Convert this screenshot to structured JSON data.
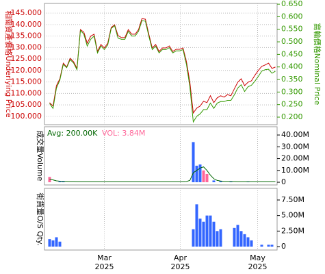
{
  "chart_data": [
    {
      "type": "line",
      "ylabel": "相關資產價格Underlying Price",
      "y2label": "窩輪價格Nominal Price",
      "ytick_side": "left",
      "grid": true,
      "x": [
        0,
        1,
        2,
        3,
        4,
        5,
        6,
        7,
        8,
        9,
        10,
        11,
        12,
        13,
        14,
        15,
        16,
        17,
        18,
        19,
        20,
        21,
        22,
        23,
        24,
        25,
        26,
        27,
        28,
        29,
        30,
        31,
        32,
        33,
        34,
        35,
        36,
        37,
        38,
        39,
        40,
        41,
        42,
        43,
        44,
        45,
        46,
        47,
        48,
        49,
        50,
        51,
        52,
        53,
        54,
        55,
        56,
        57,
        58,
        59,
        60,
        61,
        62,
        63,
        64,
        65,
        66
      ],
      "xlim": [
        -1.5,
        66.5
      ],
      "ylim": [
        96.4,
        149.2
      ],
      "yticks": [
        {
          "value": 100,
          "label": "100.000"
        },
        {
          "value": 105,
          "label": "105.000"
        },
        {
          "value": 110,
          "label": "110.000"
        },
        {
          "value": 115,
          "label": "115.000"
        },
        {
          "value": 120,
          "label": "120.000"
        },
        {
          "value": 125,
          "label": "125.000"
        },
        {
          "value": 130,
          "label": "130.000"
        },
        {
          "value": 135,
          "label": "135.000"
        },
        {
          "value": 140,
          "label": "140.000"
        },
        {
          "value": 145,
          "label": "145.000"
        }
      ],
      "y2lim": [
        0.17,
        0.653
      ],
      "y2ticks": [
        {
          "value": 0.2,
          "label": "0.200"
        },
        {
          "value": 0.25,
          "label": "0.250"
        },
        {
          "value": 0.3,
          "label": "0.300"
        },
        {
          "value": 0.35,
          "label": "0.350"
        },
        {
          "value": 0.4,
          "label": "0.400"
        },
        {
          "value": 0.45,
          "label": "0.450"
        },
        {
          "value": 0.5,
          "label": "0.500"
        },
        {
          "value": 0.55,
          "label": "0.550"
        },
        {
          "value": 0.6,
          "label": "0.600"
        },
        {
          "value": 0.65,
          "label": "0.650"
        }
      ],
      "series": [
        {
          "color": "#cc0000",
          "values": [
            106.0,
            104.5,
            113.4,
            116.4,
            123.2,
            121.5,
            125.3,
            123.8,
            120.9,
            137.8,
            136.7,
            131.9,
            134.9,
            135.8,
            128.3,
            131.3,
            129.8,
            131.9,
            138.7,
            139.9,
            135.2,
            134.3,
            134.3,
            137.8,
            135.8,
            135.8,
            137.8,
            142.6,
            142.3,
            135.8,
            129.8,
            131.3,
            128.3,
            129.8,
            129.8,
            130.7,
            128.3,
            129.2,
            129.2,
            129.8,
            123.8,
            114.9,
            101.5,
            103.6,
            104.5,
            106.6,
            106.0,
            109.0,
            106.0,
            108.1,
            109.0,
            108.4,
            109.5,
            109.0,
            112.0,
            114.9,
            116.4,
            113.4,
            114.9,
            115.5,
            117.9,
            120.0,
            121.8,
            122.4,
            123.2,
            120.9,
            121.5
          ]
        },
        {
          "color": "#339900",
          "axis": "y2",
          "values": [
            0.254,
            0.235,
            0.316,
            0.348,
            0.41,
            0.397,
            0.429,
            0.416,
            0.389,
            0.545,
            0.531,
            0.483,
            0.51,
            0.523,
            0.456,
            0.483,
            0.469,
            0.488,
            0.553,
            0.564,
            0.515,
            0.51,
            0.51,
            0.542,
            0.523,
            0.523,
            0.542,
            0.585,
            0.582,
            0.523,
            0.469,
            0.483,
            0.456,
            0.469,
            0.469,
            0.477,
            0.456,
            0.464,
            0.464,
            0.469,
            0.41,
            0.321,
            0.181,
            0.203,
            0.213,
            0.23,
            0.23,
            0.256,
            0.235,
            0.256,
            0.262,
            0.262,
            0.267,
            0.267,
            0.289,
            0.316,
            0.329,
            0.302,
            0.321,
            0.327,
            0.343,
            0.362,
            0.383,
            0.389,
            0.391,
            0.375,
            0.383
          ]
        }
      ]
    },
    {
      "type": "bar",
      "ylabel": "成交量Volume",
      "avg_label": "Avg: 200.00K",
      "vol_label": "VOL: 3.84M",
      "ytick_side": "right",
      "x": [
        0,
        1,
        2,
        3,
        4,
        5,
        6,
        7,
        8,
        9,
        10,
        11,
        12,
        13,
        14,
        15,
        16,
        17,
        18,
        19,
        20,
        21,
        22,
        23,
        24,
        25,
        26,
        27,
        28,
        29,
        30,
        31,
        32,
        33,
        34,
        35,
        36,
        37,
        38,
        39,
        40,
        41,
        42,
        43,
        44,
        45,
        46,
        47,
        48,
        49,
        50,
        51,
        52,
        53,
        54,
        55,
        56,
        57,
        58,
        59,
        60,
        61,
        62,
        63,
        64,
        65,
        66
      ],
      "xlim": [
        -1.5,
        66.5
      ],
      "ylim": [
        -2300000,
        47000000
      ],
      "yticks": [
        0,
        {
          "value": 10000000,
          "label": "10.00M"
        },
        {
          "value": 20000000,
          "label": "20.00M"
        },
        {
          "value": 30000000,
          "label": "30.00M"
        },
        {
          "value": 40000000,
          "label": "40.00M"
        }
      ],
      "color": "#3366ff",
      "values": [
        4500000,
        null,
        null,
        800000,
        600000,
        null,
        null,
        null,
        null,
        null,
        null,
        null,
        null,
        null,
        null,
        null,
        null,
        null,
        null,
        null,
        null,
        null,
        null,
        null,
        null,
        null,
        null,
        null,
        null,
        null,
        null,
        null,
        null,
        null,
        null,
        null,
        null,
        null,
        null,
        null,
        null,
        null,
        34000000,
        14000000,
        15000000,
        10000000,
        7000000,
        null,
        1500000,
        null,
        1000000,
        null,
        null,
        500000,
        null,
        null,
        null,
        null,
        400000,
        null,
        null,
        null,
        null,
        null,
        null,
        null,
        null
      ],
      "bar_colors": [
        "#ff6699",
        null,
        null,
        "#3366ff",
        "#3366ff",
        null,
        null,
        null,
        null,
        null,
        null,
        null,
        null,
        null,
        null,
        null,
        null,
        null,
        null,
        null,
        null,
        null,
        null,
        null,
        null,
        null,
        null,
        null,
        null,
        null,
        null,
        null,
        null,
        null,
        null,
        null,
        null,
        null,
        null,
        null,
        null,
        null,
        "#3366ff",
        "#3366ff",
        "#3366ff",
        "#ff6699",
        "#ff6699",
        null,
        "#3366ff",
        null,
        "#3366ff",
        null,
        null,
        "#3366ff",
        null,
        null,
        null,
        null,
        "#3366ff",
        null,
        null,
        null,
        null,
        null,
        null,
        null,
        null
      ],
      "avg_color": "#006600",
      "vol_color": "#ff6699",
      "avg_line": [
        2500000,
        2000000,
        1200000,
        900000,
        800000,
        700000,
        600000,
        600000,
        500000,
        500000,
        500000,
        500000,
        500000,
        500000,
        500000,
        500000,
        500000,
        500000,
        500000,
        500000,
        500000,
        500000,
        500000,
        500000,
        500000,
        500000,
        500000,
        500000,
        500000,
        500000,
        500000,
        500000,
        500000,
        500000,
        500000,
        500000,
        500000,
        500000,
        500000,
        500000,
        600000,
        1500000,
        8000000,
        10000000,
        12000000,
        13000000,
        10000000,
        6000000,
        3000000,
        1500000,
        1000000,
        800000,
        700000,
        600000,
        600000,
        500000,
        500000,
        500000,
        500000,
        500000,
        500000,
        500000,
        500000,
        500000,
        500000,
        500000,
        500000
      ]
    },
    {
      "type": "bar",
      "ylabel": "街貨量O/S Qty.",
      "ytick_side": "right",
      "x": [
        0,
        1,
        2,
        3,
        4,
        5,
        6,
        7,
        8,
        9,
        10,
        11,
        12,
        13,
        14,
        15,
        16,
        17,
        18,
        19,
        20,
        21,
        22,
        23,
        24,
        25,
        26,
        27,
        28,
        29,
        30,
        31,
        32,
        33,
        34,
        35,
        36,
        37,
        38,
        39,
        40,
        41,
        42,
        43,
        44,
        45,
        46,
        47,
        48,
        49,
        50,
        51,
        52,
        53,
        54,
        55,
        56,
        57,
        58,
        59,
        60,
        61,
        62,
        63,
        64,
        65,
        66
      ],
      "xlim": [
        -1.5,
        66.5
      ],
      "ylim": [
        -550000,
        9370000
      ],
      "yticks": [
        0,
        {
          "value": 2500000,
          "label": "2.50M"
        },
        {
          "value": 5000000,
          "label": "5.00M"
        },
        {
          "value": 7500000,
          "label": "7.50M"
        }
      ],
      "color": "#3366ff",
      "values": [
        1200000,
        1000000,
        1500000,
        800000,
        null,
        null,
        null,
        null,
        null,
        null,
        null,
        null,
        null,
        null,
        null,
        null,
        null,
        null,
        null,
        null,
        null,
        null,
        null,
        null,
        null,
        null,
        null,
        null,
        null,
        null,
        null,
        null,
        null,
        null,
        null,
        null,
        null,
        null,
        null,
        null,
        null,
        null,
        2800000,
        6800000,
        4500000,
        4000000,
        5000000,
        5000000,
        4000000,
        2500000,
        2800000,
        null,
        null,
        null,
        3000000,
        3500000,
        2500000,
        2000000,
        1500000,
        1000000,
        null,
        null,
        300000,
        null,
        300000,
        300000,
        null
      ],
      "xticks": [
        {
          "value": 16,
          "label": "Mar\n2025"
        },
        {
          "value": 38.2,
          "label": "Apr\n2025"
        },
        {
          "value": 60.8,
          "label": "May\n2025"
        }
      ]
    }
  ]
}
